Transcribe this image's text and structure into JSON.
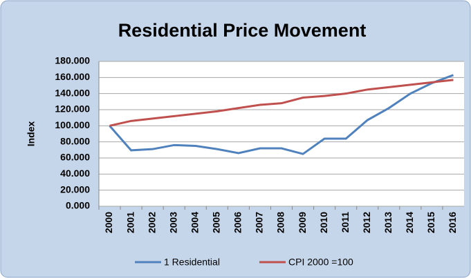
{
  "chart_data": {
    "type": "line",
    "title": "Residential Price Movement",
    "y_label": "Index",
    "categories": [
      "2000",
      "2001",
      "2002",
      "2003",
      "2004",
      "2005",
      "2006",
      "2007",
      "2008",
      "2009",
      "2010",
      "2011",
      "2012",
      "2013",
      "2014",
      "2015",
      "2016"
    ],
    "series": [
      {
        "name": "1 Residential",
        "color": "#4f81bd",
        "values": [
          100,
          69.5,
          71,
          76,
          75,
          71,
          66,
          72,
          72,
          65,
          84,
          84,
          107,
          122,
          140,
          153,
          163
        ]
      },
      {
        "name": "CPI 2000 =100",
        "color": "#c0504d",
        "values": [
          100,
          106,
          109,
          112,
          115,
          118,
          122,
          126,
          128,
          135,
          137,
          140,
          145,
          148,
          151,
          154,
          157
        ]
      }
    ],
    "ylim": [
      0,
      180
    ],
    "yticks": [
      {
        "value": 0,
        "label": "0.000"
      },
      {
        "value": 20,
        "label": "20.000"
      },
      {
        "value": 40,
        "label": "40.000"
      },
      {
        "value": 60,
        "label": "60.000"
      },
      {
        "value": 80,
        "label": "80.000"
      },
      {
        "value": 100,
        "label": "100.000"
      },
      {
        "value": 120,
        "label": "120.000"
      },
      {
        "value": 140,
        "label": "140.000"
      },
      {
        "value": 160,
        "label": "160.000"
      },
      {
        "value": 180,
        "label": "180.000"
      }
    ],
    "grid": true,
    "legend": "bottom"
  }
}
